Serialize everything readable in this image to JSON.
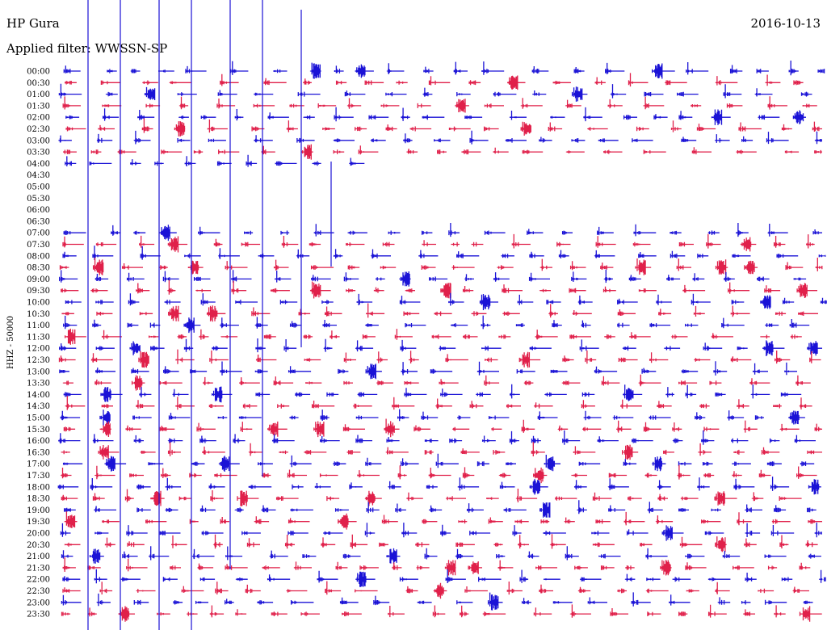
{
  "header": {
    "station": "HP Gura",
    "date": "2016-10-13",
    "filter": "Applied filter: WWSSN-SP"
  },
  "chart_data": {
    "type": "helicorder",
    "channel_label": "HHZ - 50000",
    "row_labels": [
      "00:00",
      "00:30",
      "01:00",
      "01:30",
      "02:00",
      "02:30",
      "03:00",
      "03:30",
      "04:00",
      "04:30",
      "05:00",
      "05:30",
      "06:00",
      "06:30",
      "07:00",
      "07:30",
      "08:00",
      "08:30",
      "09:00",
      "09:30",
      "10:00",
      "10:30",
      "11:00",
      "11:30",
      "12:00",
      "12:30",
      "13:00",
      "13:30",
      "14:00",
      "14:30",
      "15:00",
      "15:30",
      "16:00",
      "16:30",
      "17:00",
      "17:30",
      "18:00",
      "18:30",
      "19:00",
      "19:30",
      "20:00",
      "20:30",
      "21:00",
      "21:30",
      "22:00",
      "22:30",
      "23:00",
      "23:30"
    ],
    "trace_colors": [
      "#1a12d6",
      "#e0204a"
    ],
    "gap_rows": [
      "04:30",
      "05:00",
      "05:30",
      "06:00",
      "06:30"
    ],
    "partial_row": "04:00",
    "partial_row_end_fraction": 0.41
  }
}
